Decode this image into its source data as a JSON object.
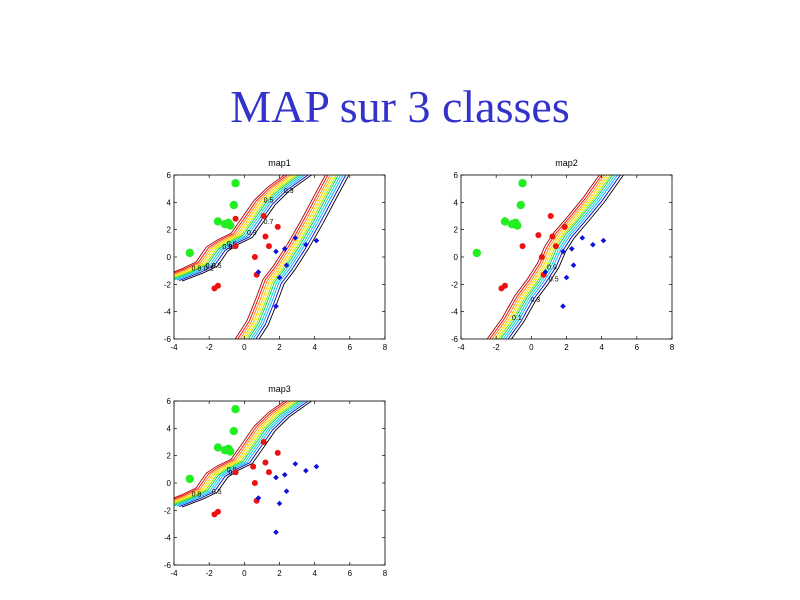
{
  "slide": {
    "title": "MAP sur 3 classes"
  },
  "colors": {
    "class_green": "#22ee22",
    "class_red": "#ee1111",
    "class_blue": "#1111dd",
    "contour_palette": [
      "#aa0000",
      "#ff0000",
      "#ff8800",
      "#ffcc00",
      "#ffee00",
      "#88ee00",
      "#00cc66",
      "#00cccc",
      "#00aaff",
      "#0000cc",
      "#000000"
    ]
  },
  "chart_data": [
    {
      "type": "scatter",
      "title": "map1",
      "xlim": [
        -4,
        8
      ],
      "ylim": [
        -6,
        6
      ],
      "xticks": [
        "-4",
        "-2",
        "0",
        "2",
        "4",
        "6",
        "8"
      ],
      "yticks": [
        "-6",
        "-4",
        "-2",
        "0",
        "2",
        "4",
        "6"
      ],
      "boundaries": [
        "upper",
        "lower"
      ],
      "contour_labels": [
        "0.8",
        "0.5",
        "0.7",
        "0.6",
        "0.9",
        "0.7",
        "0.5",
        "0.3",
        "0.1",
        "0.6",
        "0.3"
      ],
      "series": [
        {
          "marker": "circle-large",
          "color": "green",
          "points": [
            [
              -3.1,
              0.3
            ],
            [
              -1.5,
              2.6
            ],
            [
              -1.1,
              2.4
            ],
            [
              -0.8,
              2.3
            ],
            [
              -0.6,
              3.8
            ],
            [
              -0.5,
              5.4
            ],
            [
              -0.9,
              2.5
            ]
          ]
        },
        {
          "marker": "circle-small",
          "color": "red",
          "points": [
            [
              -1.7,
              -2.3
            ],
            [
              -1.5,
              -2.1
            ],
            [
              -0.5,
              0.8
            ],
            [
              0.6,
              0.0
            ],
            [
              0.7,
              -1.3
            ],
            [
              1.1,
              3.0
            ],
            [
              1.2,
              1.5
            ],
            [
              1.4,
              0.8
            ],
            [
              1.9,
              2.2
            ],
            [
              -0.5,
              2.8
            ]
          ]
        },
        {
          "marker": "diamond",
          "color": "blue",
          "points": [
            [
              0.8,
              -1.1
            ],
            [
              1.8,
              0.4
            ],
            [
              2.0,
              -1.5
            ],
            [
              2.3,
              0.6
            ],
            [
              2.4,
              -0.6
            ],
            [
              2.9,
              1.4
            ],
            [
              3.5,
              0.9
            ],
            [
              4.1,
              1.2
            ],
            [
              1.8,
              -3.6
            ]
          ]
        }
      ]
    },
    {
      "type": "scatter",
      "title": "map2",
      "xlim": [
        -4,
        8
      ],
      "ylim": [
        -6,
        6
      ],
      "xticks": [
        "-4",
        "-2",
        "0",
        "2",
        "4",
        "6",
        "8"
      ],
      "yticks": [
        "-6",
        "-4",
        "-2",
        "0",
        "2",
        "4",
        "6"
      ],
      "boundaries": [
        "single"
      ],
      "contour_labels": [
        "0.1",
        "0.3",
        "0.5",
        "0.9"
      ],
      "series": [
        {
          "marker": "circle-large",
          "color": "green",
          "points": [
            [
              -3.1,
              0.3
            ],
            [
              -1.5,
              2.6
            ],
            [
              -1.1,
              2.4
            ],
            [
              -0.8,
              2.3
            ],
            [
              -0.6,
              3.8
            ],
            [
              -0.5,
              5.4
            ],
            [
              -0.9,
              2.5
            ]
          ]
        },
        {
          "marker": "circle-small",
          "color": "red",
          "points": [
            [
              -1.7,
              -2.3
            ],
            [
              -1.5,
              -2.1
            ],
            [
              -0.5,
              0.8
            ],
            [
              0.6,
              0.0
            ],
            [
              0.7,
              -1.3
            ],
            [
              1.1,
              3.0
            ],
            [
              1.2,
              1.5
            ],
            [
              1.4,
              0.8
            ],
            [
              1.9,
              2.2
            ],
            [
              0.4,
              1.6
            ]
          ]
        },
        {
          "marker": "diamond",
          "color": "blue",
          "points": [
            [
              0.8,
              -1.1
            ],
            [
              1.8,
              0.4
            ],
            [
              2.0,
              -1.5
            ],
            [
              2.3,
              0.6
            ],
            [
              2.4,
              -0.6
            ],
            [
              2.9,
              1.4
            ],
            [
              3.5,
              0.9
            ],
            [
              4.1,
              1.2
            ],
            [
              1.8,
              -3.6
            ]
          ]
        }
      ]
    },
    {
      "type": "scatter",
      "title": "map3",
      "xlim": [
        -4,
        8
      ],
      "ylim": [
        -6,
        6
      ],
      "xticks": [
        "-4",
        "-2",
        "0",
        "2",
        "4",
        "6",
        "8"
      ],
      "yticks": [
        "-6",
        "-4",
        "-2",
        "0",
        "2",
        "4",
        "6"
      ],
      "boundaries": [
        "upper"
      ],
      "contour_labels": [
        "0.8",
        "0.5",
        "0.3",
        "0.9"
      ],
      "series": [
        {
          "marker": "circle-large",
          "color": "green",
          "points": [
            [
              -3.1,
              0.3
            ],
            [
              -1.5,
              2.6
            ],
            [
              -1.1,
              2.4
            ],
            [
              -0.8,
              2.3
            ],
            [
              -0.6,
              3.8
            ],
            [
              -0.5,
              5.4
            ],
            [
              -0.9,
              2.5
            ]
          ]
        },
        {
          "marker": "circle-small",
          "color": "red",
          "points": [
            [
              -1.7,
              -2.3
            ],
            [
              -1.5,
              -2.1
            ],
            [
              -0.5,
              0.8
            ],
            [
              0.6,
              0.0
            ],
            [
              0.7,
              -1.3
            ],
            [
              1.1,
              3.0
            ],
            [
              1.2,
              1.5
            ],
            [
              1.4,
              0.8
            ],
            [
              1.9,
              2.2
            ],
            [
              0.5,
              1.2
            ]
          ]
        },
        {
          "marker": "diamond",
          "color": "blue",
          "points": [
            [
              0.8,
              -1.1
            ],
            [
              1.8,
              0.4
            ],
            [
              2.0,
              -1.5
            ],
            [
              2.3,
              0.6
            ],
            [
              2.4,
              -0.6
            ],
            [
              2.9,
              1.4
            ],
            [
              3.5,
              0.9
            ],
            [
              4.1,
              1.2
            ],
            [
              1.8,
              -3.6
            ]
          ]
        }
      ]
    }
  ]
}
